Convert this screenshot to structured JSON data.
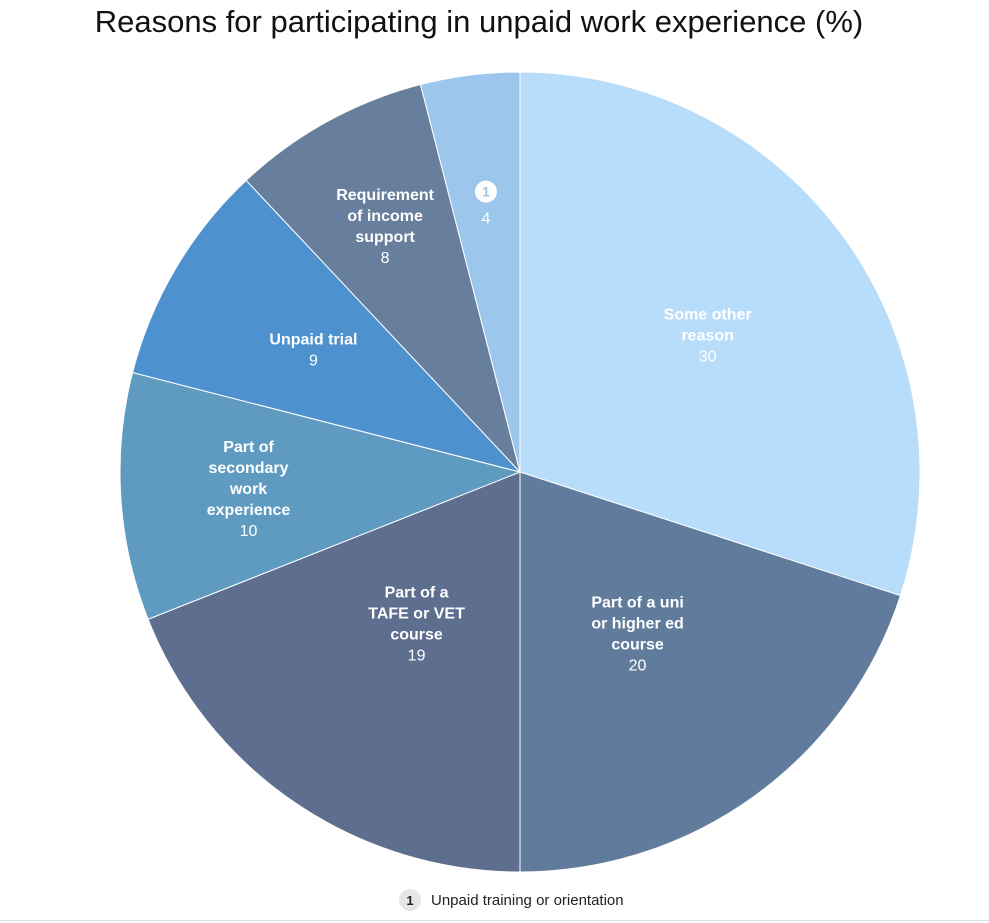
{
  "chart_data": {
    "type": "pie",
    "title": "Reasons for participating in unpaid work experience (%)",
    "start_angle_deg": 0,
    "direction": "clockwise",
    "slices": [
      {
        "label_lines": [
          "Some other",
          "reason"
        ],
        "value": 30,
        "color": "#b8ddfb",
        "key": "some-other-reason"
      },
      {
        "label_lines": [
          "Part of a uni",
          "or higher ed",
          "course"
        ],
        "value": 20,
        "color": "#607b9c",
        "key": "uni-higher-ed"
      },
      {
        "label_lines": [
          "Part of a",
          "TAFE or VET",
          "course"
        ],
        "value": 19,
        "color": "#5e6e8f",
        "key": "tafe-vet"
      },
      {
        "label_lines": [
          "Part of",
          "secondary",
          "work",
          "experience"
        ],
        "value": 10,
        "color": "#5f9bc0",
        "key": "secondary-work-experience"
      },
      {
        "label_lines": [
          "Unpaid trial"
        ],
        "value": 9,
        "color": "#4e91cf",
        "key": "unpaid-trial"
      },
      {
        "label_lines": [
          "Requirement",
          "of income",
          "support"
        ],
        "value": 8,
        "color": "#677f9d",
        "key": "income-support"
      },
      {
        "label_lines": [],
        "marker": "1",
        "value": 4,
        "color": "#9dc6ed",
        "key": "unpaid-training"
      }
    ],
    "footnotes": [
      {
        "marker": "1",
        "text": "Unpaid training or orientation"
      }
    ]
  }
}
